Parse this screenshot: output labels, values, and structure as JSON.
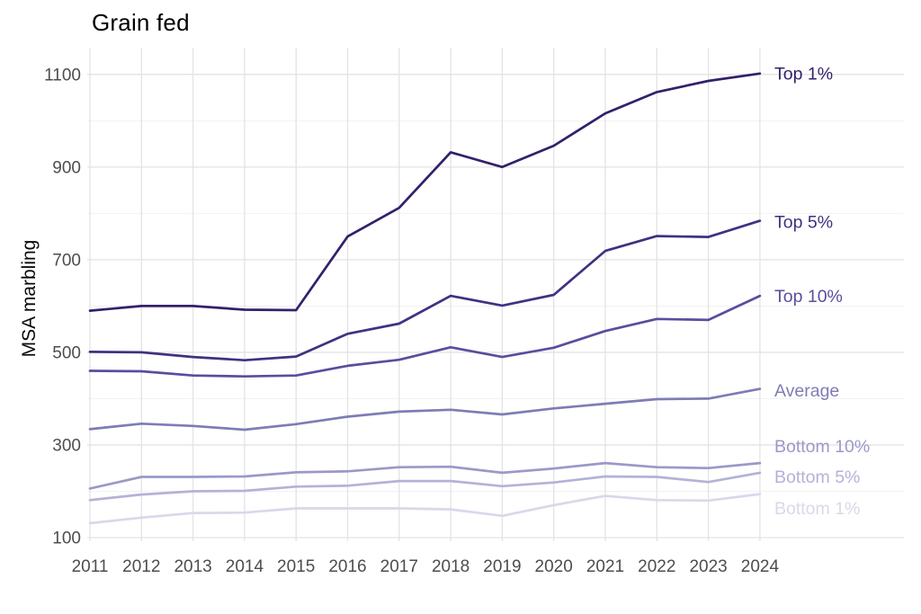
{
  "chart_data": {
    "type": "line",
    "title": "Grain fed",
    "xlabel": "",
    "ylabel": "MSA marbling",
    "x": [
      2011,
      2012,
      2013,
      2014,
      2015,
      2016,
      2017,
      2018,
      2019,
      2020,
      2021,
      2022,
      2023,
      2024
    ],
    "yticks": [
      100,
      300,
      500,
      700,
      900,
      1100
    ],
    "y_minor_ticks": [
      200,
      400,
      600,
      800,
      1000
    ],
    "ylim": [
      100,
      1150
    ],
    "grid": "on",
    "legend_position": "right-of-line-ends",
    "colors": {
      "grid_major": "#e3e3e3",
      "grid_minor": "#f0f0f0",
      "axis_text": "#4d4d4d",
      "title_text": "#000000"
    },
    "series": [
      {
        "name": "Top 1%",
        "color": "#33206b",
        "label_y": 1102,
        "values": [
          590,
          600,
          600,
          592,
          591,
          750,
          812,
          932,
          900,
          946,
          1016,
          1062,
          1086,
          1102
        ]
      },
      {
        "name": "Top 5%",
        "color": "#433081",
        "label_y": 781,
        "values": [
          501,
          500,
          490,
          483,
          491,
          540,
          562,
          622,
          601,
          624,
          719,
          751,
          749,
          784
        ]
      },
      {
        "name": "Top 10%",
        "color": "#5a4d9e",
        "label_y": 621,
        "values": [
          460,
          459,
          450,
          448,
          450,
          471,
          484,
          511,
          490,
          510,
          546,
          572,
          570,
          622
        ]
      },
      {
        "name": "Average",
        "color": "#7e7cb5",
        "label_y": 417,
        "values": [
          334,
          346,
          341,
          333,
          345,
          361,
          372,
          376,
          366,
          379,
          389,
          399,
          400,
          421
        ]
      },
      {
        "name": "Bottom 10%",
        "color": "#9a99c8",
        "label_y": 297,
        "values": [
          206,
          231,
          231,
          232,
          241,
          243,
          252,
          253,
          240,
          249,
          261,
          252,
          250,
          261
        ]
      },
      {
        "name": "Bottom 5%",
        "color": "#b3b2d7",
        "label_y": 231,
        "values": [
          181,
          193,
          200,
          201,
          210,
          212,
          222,
          222,
          211,
          219,
          232,
          231,
          220,
          240
        ]
      },
      {
        "name": "Bottom 1%",
        "color": "#d9d8ea",
        "label_y": 163,
        "values": [
          131,
          143,
          153,
          154,
          163,
          163,
          163,
          161,
          147,
          170,
          190,
          181,
          180,
          194
        ]
      }
    ]
  }
}
